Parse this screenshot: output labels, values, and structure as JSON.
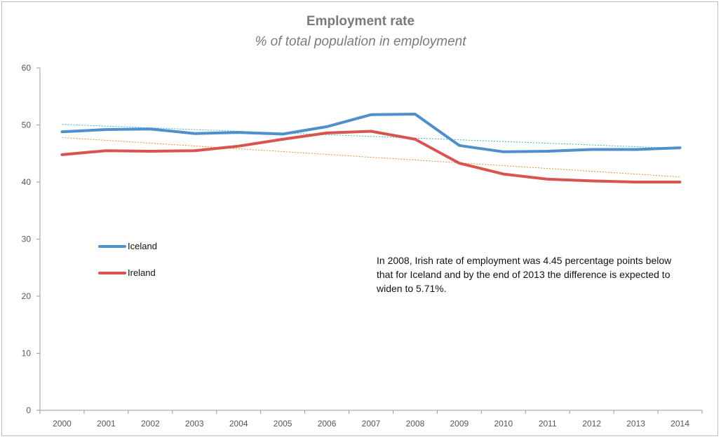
{
  "chart_data": {
    "type": "line",
    "title": "Employment rate",
    "subtitle": "% of total population in employment",
    "xlabel": "",
    "ylabel": "",
    "x": [
      "2000",
      "2001",
      "2002",
      "2003",
      "2004",
      "2005",
      "2006",
      "2007",
      "2008",
      "2009",
      "2010",
      "2011",
      "2012",
      "2013",
      "2014"
    ],
    "ylim": [
      0,
      60
    ],
    "yticks": [
      "0",
      "10",
      "20",
      "30",
      "40",
      "50",
      "60"
    ],
    "grid": false,
    "series": [
      {
        "name": "Iceland",
        "color": "#4f8fcb",
        "values": [
          48.8,
          49.2,
          49.3,
          48.5,
          48.7,
          48.4,
          49.7,
          51.8,
          51.9,
          46.4,
          45.3,
          45.4,
          45.7,
          45.7,
          46.0
        ],
        "trendline": {
          "start": 50.1,
          "end": 45.9,
          "color": "#33b5c8"
        }
      },
      {
        "name": "Ireland",
        "color": "#d9534f",
        "values": [
          44.8,
          45.5,
          45.4,
          45.5,
          46.3,
          47.5,
          48.6,
          48.9,
          47.5,
          43.3,
          41.4,
          40.5,
          40.2,
          40.0,
          40.0
        ],
        "trendline": {
          "start": 47.8,
          "end": 40.9,
          "color": "#f08a24"
        }
      }
    ],
    "legend_position": "left-middle",
    "annotation": "In 2008, Irish rate of employment was 4.45 percentage points below that for Iceland and by the end of 2013 the difference is expected to widen to 5.71%."
  }
}
